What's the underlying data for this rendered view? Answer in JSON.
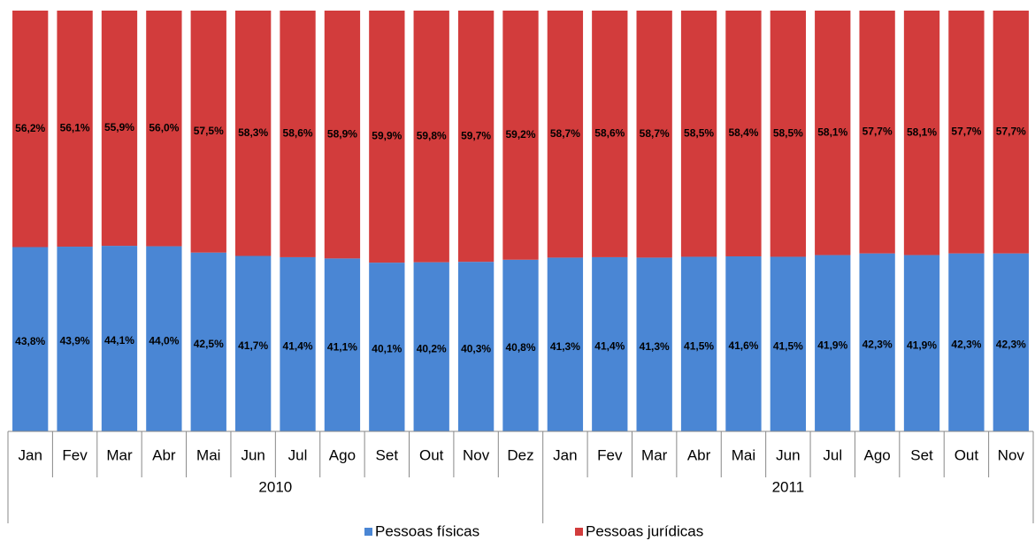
{
  "chart_data": {
    "type": "stacked_bar_percent",
    "groups": [
      {
        "name": "2010",
        "categories": [
          "Jan",
          "Fev",
          "Mar",
          "Abr",
          "Mai",
          "Jun",
          "Jul",
          "Ago",
          "Set",
          "Out",
          "Nov",
          "Dez"
        ]
      },
      {
        "name": "2011",
        "categories": [
          "Jan",
          "Fev",
          "Mar",
          "Abr",
          "Mai",
          "Jun",
          "Jul",
          "Ago",
          "Set",
          "Out",
          "Nov"
        ]
      }
    ],
    "ylim": [
      0,
      100
    ],
    "legend": "bottom",
    "series": [
      {
        "name": "Pessoas físicas",
        "color": "#4a86d4",
        "values": [
          43.8,
          43.9,
          44.1,
          44.0,
          42.5,
          41.7,
          41.4,
          41.1,
          40.1,
          40.2,
          40.3,
          40.8,
          41.3,
          41.4,
          41.3,
          41.5,
          41.6,
          41.5,
          41.9,
          42.3,
          41.9,
          42.3,
          42.3
        ],
        "value_labels": [
          "43,8%",
          "43,9%",
          "44,1%",
          "44,0%",
          "42,5%",
          "41,7%",
          "41,4%",
          "41,1%",
          "40,1%",
          "40,2%",
          "40,3%",
          "40,8%",
          "41,3%",
          "41,4%",
          "41,3%",
          "41,5%",
          "41,6%",
          "41,5%",
          "41,9%",
          "42,3%",
          "41,9%",
          "42,3%",
          "42,3%"
        ]
      },
      {
        "name": "Pessoas jurídicas",
        "color": "#d23c3c",
        "values": [
          56.2,
          56.1,
          55.9,
          56.0,
          57.5,
          58.3,
          58.6,
          58.9,
          59.9,
          59.8,
          59.7,
          59.2,
          58.7,
          58.6,
          58.7,
          58.5,
          58.4,
          58.5,
          58.1,
          57.7,
          58.1,
          57.7,
          57.7
        ],
        "value_labels": [
          "56,2%",
          "56,1%",
          "55,9%",
          "56,0%",
          "57,5%",
          "58,3%",
          "58,6%",
          "58,9%",
          "59,9%",
          "59,8%",
          "59,7%",
          "59,2%",
          "58,7%",
          "58,6%",
          "58,7%",
          "58,5%",
          "58,4%",
          "58,5%",
          "58,1%",
          "57,7%",
          "58,1%",
          "57,7%",
          "57,7%"
        ]
      }
    ]
  }
}
